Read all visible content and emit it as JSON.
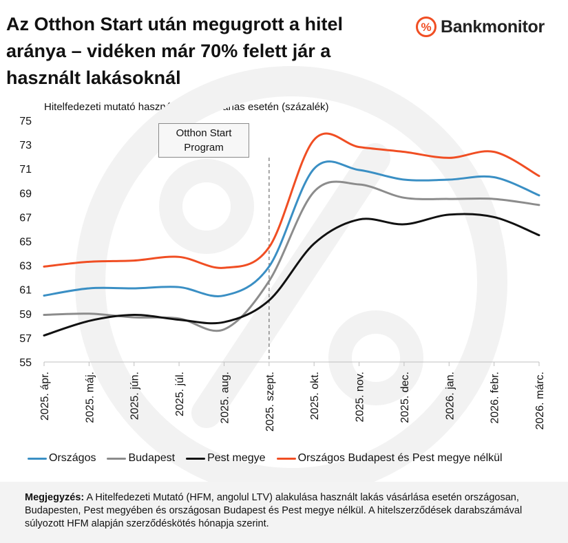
{
  "header": {
    "title": "Az Otthon Start után megugrott a hitel aránya – vidéken már 70% felett jár a használt lakásoknál",
    "brand_icon": "%",
    "brand_name": "Bankmonitor",
    "brand_color": "#f04e23"
  },
  "chart_data": {
    "type": "line",
    "title": "Az Otthon Start után megugrott a hitel aránya – vidéken már 70% felett jár a használt lakásoknál",
    "subtitle": "Hitelfedezeti mutató használt lakás vásárlás esetén (százalék)",
    "x": [
      "2025. ápr.",
      "2025. máj.",
      "2025. jún.",
      "2025. júl.",
      "2025. aug.",
      "2025. szept.",
      "2025. okt.",
      "2025. nov.",
      "2025. dec.",
      "2026. jan.",
      "2026. febr.",
      "2026. márc."
    ],
    "ylim": [
      55,
      75
    ],
    "yticks": [
      55,
      57,
      59,
      61,
      63,
      65,
      67,
      69,
      71,
      73,
      75
    ],
    "series": [
      {
        "name": "Országos",
        "color": "#3a8fc4",
        "values": [
          60.5,
          61.1,
          61.1,
          61.2,
          60.5,
          62.9,
          71.0,
          70.9,
          70.1,
          70.1,
          70.3,
          68.8
        ]
      },
      {
        "name": "Budapest",
        "color": "#8c8c8c",
        "values": [
          58.9,
          59.0,
          58.7,
          58.6,
          57.7,
          61.7,
          69.1,
          69.7,
          68.6,
          68.5,
          68.5,
          68.0
        ]
      },
      {
        "name": "Pest megye",
        "color": "#111111",
        "values": [
          57.2,
          58.4,
          58.9,
          58.5,
          58.3,
          60.1,
          64.8,
          66.8,
          66.4,
          67.2,
          67.0,
          65.5
        ]
      },
      {
        "name": "Országos Budapest és Pest megye nélkül",
        "color": "#f04e23",
        "values": [
          62.9,
          63.3,
          63.4,
          63.7,
          62.8,
          64.5,
          73.4,
          72.8,
          72.4,
          71.9,
          72.4,
          70.4
        ]
      }
    ],
    "annotation": {
      "lines": [
        "Otthon Start",
        "Program"
      ],
      "at": "2025. szept."
    },
    "grid": false,
    "legend_position": "bottom"
  },
  "note": {
    "label": "Megjegyzés:",
    "text": " A Hitelfedezeti Mutató (HFM, angolul LTV) alakulása használt lakás vásárlása esetén országosan, Budapesten, Pest megyében és országosan Budapest és Pest megye nélkül. A hitelszerződések darabszámával súlyozott HFM alapján szerződéskötés hónapja szerint."
  }
}
